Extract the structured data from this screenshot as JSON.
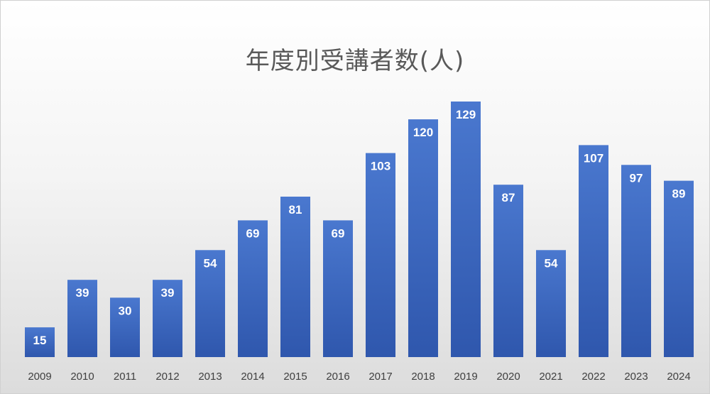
{
  "chart_data": {
    "type": "bar",
    "title": "年度別受講者数(人)",
    "xlabel": "",
    "ylabel": "",
    "categories": [
      "2009",
      "2010",
      "2011",
      "2012",
      "2013",
      "2014",
      "2015",
      "2016",
      "2017",
      "2018",
      "2019",
      "2020",
      "2021",
      "2022",
      "2023",
      "2024"
    ],
    "values": [
      15,
      39,
      30,
      39,
      54,
      69,
      81,
      69,
      103,
      120,
      129,
      87,
      54,
      107,
      97,
      89
    ],
    "ylim": [
      0,
      129
    ],
    "grid": false,
    "legend": "none",
    "data_labels": true,
    "colors": {
      "bar_top": "#4a78cf",
      "bar_bottom": "#2f57ad",
      "label": "#ffffff",
      "tick": "#404040",
      "title": "#595959"
    }
  }
}
